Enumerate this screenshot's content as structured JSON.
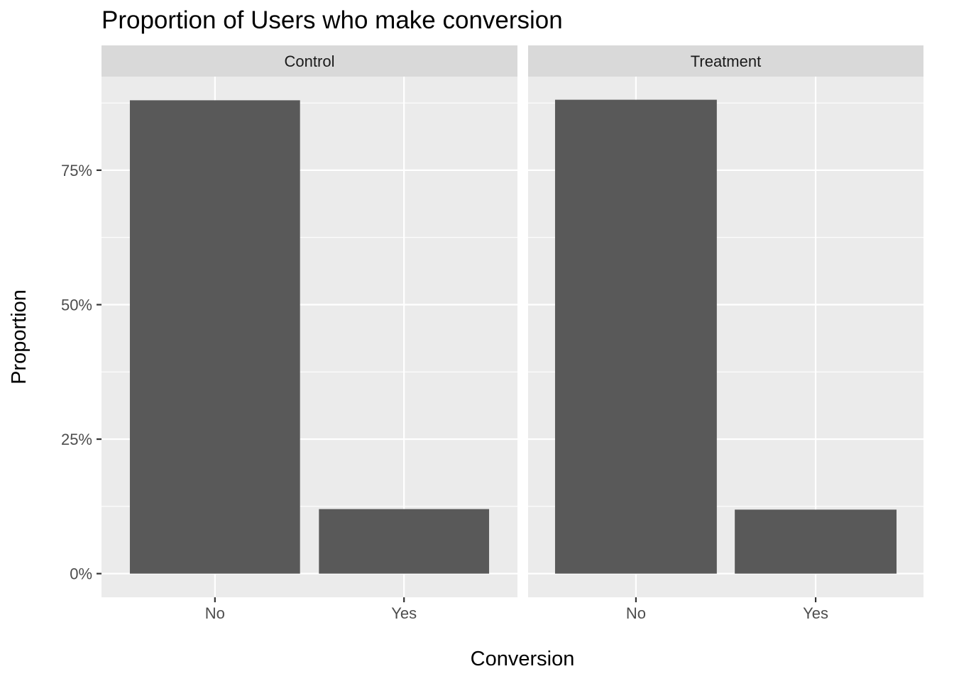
{
  "chart_data": {
    "type": "bar",
    "title": "Proportion of Users who make conversion",
    "xlabel": "Conversion",
    "ylabel": "Proportion",
    "categories": [
      "No",
      "Yes"
    ],
    "facets": [
      {
        "name": "Control",
        "values": [
          0.88,
          0.12
        ]
      },
      {
        "name": "Treatment",
        "values": [
          0.881,
          0.119
        ]
      }
    ],
    "ylim": [
      -0.044,
      0.924
    ],
    "y_ticks": [
      {
        "value": 0,
        "label": "0%"
      },
      {
        "value": 0.25,
        "label": "25%"
      },
      {
        "value": 0.5,
        "label": "50%"
      },
      {
        "value": 0.75,
        "label": "75%"
      }
    ],
    "y_minor_ticks": [
      0.125,
      0.375,
      0.625,
      0.875
    ],
    "grid": true,
    "colors": {
      "bar": "#595959",
      "panel_background": "#ebebeb",
      "strip_background": "#d9d9d9",
      "grid": "#ffffff",
      "tick": "#333333"
    }
  }
}
